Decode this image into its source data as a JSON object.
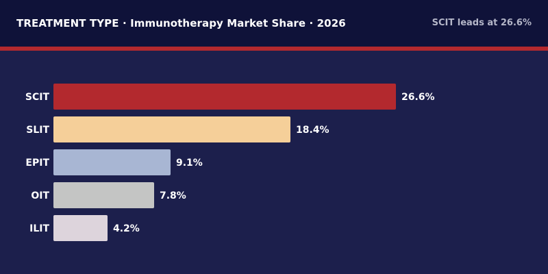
{
  "header": {
    "title": "TREATMENT TYPE  ·  Immunotherapy Market Share  ·  2026",
    "callout": "SCIT leads at 26.6%"
  },
  "colors": {
    "background": "#1c1f4c",
    "header_background": "#0f1239",
    "accent": "#b3292e",
    "label_text": "#ffffff"
  },
  "chart_data": {
    "type": "bar",
    "orientation": "horizontal",
    "title": "TREATMENT TYPE  ·  Immunotherapy Market Share  ·  2026",
    "categories": [
      "SCIT",
      "SLIT",
      "EPIT",
      "OIT",
      "ILIT"
    ],
    "values": [
      26.6,
      18.4,
      9.1,
      7.8,
      4.2
    ],
    "value_labels": [
      "26.6%",
      "18.4%",
      "9.1%",
      "7.8%",
      "4.2%"
    ],
    "bar_colors": [
      "#b3292e",
      "#f5cf99",
      "#a8b6d3",
      "#c4c5c4",
      "#ddd4dc"
    ],
    "unit": "%",
    "xlim": [
      0,
      26.6
    ],
    "grid": false,
    "legend": "none"
  }
}
